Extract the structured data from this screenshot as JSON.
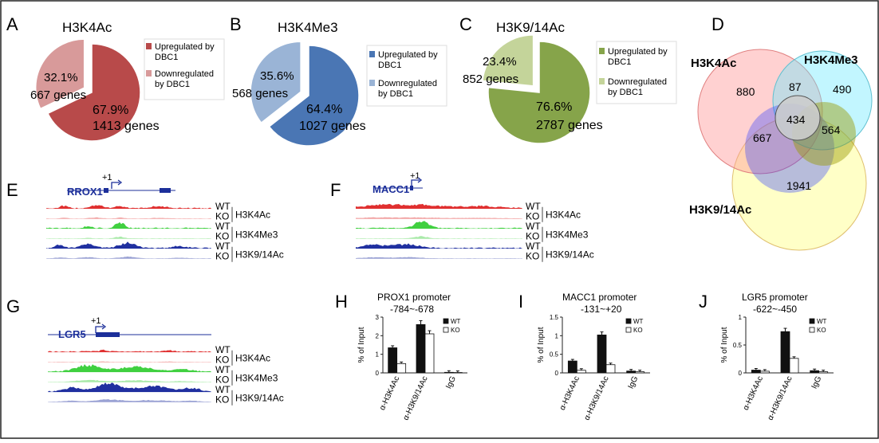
{
  "panels": {
    "A": {
      "letter": "A",
      "title": "H3K4Ac",
      "slices": [
        {
          "pct": "67.9%",
          "genes": "1413 genes",
          "value": 67.9,
          "color": "#b84a4a"
        },
        {
          "pct": "32.1%",
          "genes": "667 genes",
          "value": 32.1,
          "color": "#d89a9a"
        }
      ],
      "legend": [
        {
          "label": "Upregulated by DBC1",
          "color": "#b84a4a"
        },
        {
          "label": "Downregulated by DBC1",
          "color": "#d89a9a"
        }
      ]
    },
    "B": {
      "letter": "B",
      "title": "H3K4Me3",
      "slices": [
        {
          "pct": "64.4%",
          "genes": "1027 genes",
          "value": 64.4,
          "color": "#4a76b4"
        },
        {
          "pct": "35.6%",
          "genes": "568 genes",
          "value": 35.6,
          "color": "#9ab4d6"
        }
      ],
      "legend": [
        {
          "label": "Upregulated by DBC1",
          "color": "#4a76b4"
        },
        {
          "label": "Downregulated by DBC1",
          "color": "#9ab4d6"
        }
      ]
    },
    "C": {
      "letter": "C",
      "title": "H3K9/14Ac",
      "slices": [
        {
          "pct": "76.6%",
          "genes": "2787 genes",
          "value": 76.6,
          "color": "#86a44a"
        },
        {
          "pct": "23.4%",
          "genes": "852 genes",
          "value": 23.4,
          "color": "#c4d49a"
        }
      ],
      "legend": [
        {
          "label": "Upregulated by DBC1",
          "color": "#86a44a"
        },
        {
          "label": "Downregulated by DBC1",
          "color": "#c4d49a"
        }
      ]
    },
    "D": {
      "letter": "D",
      "labels": {
        "a": "H3K4Ac",
        "b": "H3K4Me3",
        "c": "H3K9/14Ac"
      },
      "counts": {
        "a_only": "880",
        "ab": "87",
        "b_only": "490",
        "ac": "667",
        "abc": "434",
        "bc": "564",
        "c_only": "1941"
      }
    },
    "E": {
      "letter": "E",
      "gene": "RROX1",
      "tss": "+1"
    },
    "F": {
      "letter": "F",
      "gene": "MACC1",
      "tss": "+1"
    },
    "G": {
      "letter": "G",
      "gene": "LGR5",
      "tss": "+1"
    },
    "tracks": {
      "wt": "WT",
      "ko": "KO",
      "marks": [
        "H3K4Ac",
        "H3K4Me3",
        "H3K9/14Ac"
      ]
    },
    "H": {
      "letter": "H",
      "title": "PROX1 promoter",
      "subtitle": "-784~-678",
      "ylabel": "% of Input"
    },
    "I": {
      "letter": "I",
      "title": "MACC1 promoter",
      "subtitle": "-131~+20",
      "ylabel": "% of Input"
    },
    "J": {
      "letter": "J",
      "title": "LGR5 promoter",
      "subtitle": "-622~-450",
      "ylabel": "% of Input"
    }
  },
  "chart_data": [
    {
      "type": "pie",
      "title": "H3K4Ac",
      "categories": [
        "Upregulated by DBC1",
        "Downregulated by DBC1"
      ],
      "values": [
        67.9,
        32.1
      ],
      "labels": [
        "1413 genes",
        "667 genes"
      ]
    },
    {
      "type": "pie",
      "title": "H3K4Me3",
      "categories": [
        "Upregulated by DBC1",
        "Downregulated by DBC1"
      ],
      "values": [
        64.4,
        35.6
      ],
      "labels": [
        "1027 genes",
        "568 genes"
      ]
    },
    {
      "type": "pie",
      "title": "H3K9/14Ac",
      "categories": [
        "Upregulated by DBC1",
        "Downregulated by DBC1"
      ],
      "values": [
        76.6,
        23.4
      ],
      "labels": [
        "2787 genes",
        "852 genes"
      ]
    },
    {
      "type": "bar",
      "title": "PROX1 promoter",
      "subtitle": "-784~-678",
      "ylabel": "% of Input",
      "categories": [
        "α-H3K4Ac",
        "α-H3K9/14Ac",
        "IgG"
      ],
      "ylim": [
        0,
        3
      ],
      "yticks": [
        0,
        1,
        2,
        3
      ],
      "legend": "top-right",
      "series": [
        {
          "name": "WT",
          "values": [
            1.35,
            2.6,
            0.03
          ]
        },
        {
          "name": "KO",
          "values": [
            0.5,
            2.1,
            0.02
          ]
        }
      ]
    },
    {
      "type": "bar",
      "title": "MACC1 promoter",
      "subtitle": "-131~+20",
      "ylabel": "% of Input",
      "categories": [
        "α-H3K4Ac",
        "α-H3K9/14Ac",
        "IgG"
      ],
      "ylim": [
        0,
        1.5
      ],
      "yticks": [
        0,
        0.5,
        1,
        1.5
      ],
      "legend": "top-right",
      "series": [
        {
          "name": "WT",
          "values": [
            0.32,
            1.02,
            0.05
          ]
        },
        {
          "name": "KO",
          "values": [
            0.07,
            0.22,
            0.03
          ]
        }
      ]
    },
    {
      "type": "bar",
      "title": "LGR5 promoter",
      "subtitle": "-622~-450",
      "ylabel": "% of Input",
      "categories": [
        "α-H3K4Ac",
        "α-H3K9/14Ac",
        "IgG"
      ],
      "ylim": [
        0,
        1
      ],
      "yticks": [
        0,
        0.5,
        1
      ],
      "legend": "top-right",
      "series": [
        {
          "name": "WT",
          "values": [
            0.05,
            0.74,
            0.04
          ]
        },
        {
          "name": "KO",
          "values": [
            0.03,
            0.26,
            0.02
          ]
        }
      ]
    }
  ]
}
